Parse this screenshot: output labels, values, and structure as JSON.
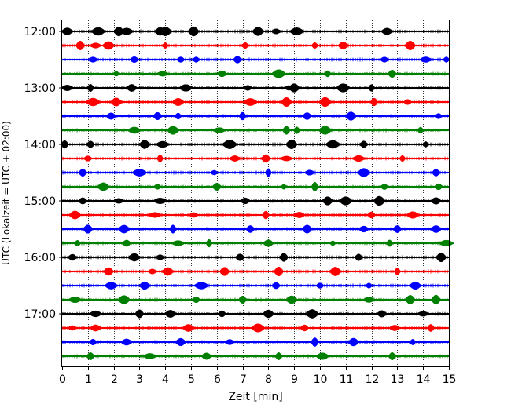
{
  "chart_data": {
    "type": "line",
    "title": "",
    "xlabel": "Zeit  [min]",
    "ylabel": "UTC (Lokalzeit = UTC + 02:00)",
    "xlim": [
      0,
      15
    ],
    "xticks": [
      "0",
      "1",
      "2",
      "3",
      "4",
      "5",
      "6",
      "7",
      "8",
      "9",
      "10",
      "11",
      "12",
      "13",
      "14",
      "15"
    ],
    "yticks": [
      {
        "label": "12:00",
        "trace_index": 0
      },
      {
        "label": "13:00",
        "trace_index": 4
      },
      {
        "label": "14:00",
        "trace_index": 8
      },
      {
        "label": "15:00",
        "trace_index": 12
      },
      {
        "label": "16:00",
        "trace_index": 16
      },
      {
        "label": "17:00",
        "trace_index": 20
      }
    ],
    "trace_interval_minutes": 15,
    "grid": "vertical dotted at each minute",
    "colors": [
      "#000000",
      "#ff0000",
      "#0000ff",
      "#008000"
    ],
    "traces": [
      {
        "start": "12:00",
        "color": "#000000",
        "events_min": [
          0.2,
          1.4,
          2.2,
          2.5,
          3.8,
          4.0,
          5.1,
          7.6,
          8.3,
          9.1,
          12.6
        ]
      },
      {
        "start": "12:15",
        "color": "#ff0000",
        "events_min": [
          0.7,
          1.3,
          1.8,
          4.0,
          7.1,
          9.8,
          10.9,
          13.5
        ]
      },
      {
        "start": "12:30",
        "color": "#0000ff",
        "events_min": [
          1.2,
          2.8,
          4.6,
          5.2,
          6.8,
          12.5,
          14.1,
          14.9
        ]
      },
      {
        "start": "12:45",
        "color": "#008000",
        "events_min": [
          2.1,
          3.9,
          6.2,
          8.4,
          10.3,
          12.8
        ]
      },
      {
        "start": "13:00",
        "color": "#000000",
        "events_min": [
          0.2,
          1.1,
          2.7,
          4.8,
          7.2,
          8.8,
          9.0,
          10.9,
          12.0
        ]
      },
      {
        "start": "13:15",
        "color": "#ff0000",
        "events_min": [
          1.2,
          2.1,
          4.5,
          7.3,
          8.7,
          10.2,
          12.1,
          13.4
        ]
      },
      {
        "start": "13:30",
        "color": "#0000ff",
        "events_min": [
          1.9,
          3.7,
          4.5,
          7.0,
          9.5,
          11.2,
          14.6
        ]
      },
      {
        "start": "13:45",
        "color": "#008000",
        "events_min": [
          2.8,
          4.3,
          6.1,
          8.7,
          9.1,
          10.2,
          13.9
        ]
      },
      {
        "start": "14:00",
        "color": "#000000",
        "events_min": [
          0.1,
          1.1,
          3.2,
          3.9,
          6.5,
          8.9,
          10.5,
          11.7,
          14.1
        ]
      },
      {
        "start": "14:15",
        "color": "#ff0000",
        "events_min": [
          1.0,
          3.8,
          6.7,
          7.9,
          8.7,
          11.5,
          13.2
        ]
      },
      {
        "start": "14:30",
        "color": "#0000ff",
        "events_min": [
          0.8,
          3.0,
          5.9,
          8.0,
          9.6,
          11.7,
          14.5
        ]
      },
      {
        "start": "14:45",
        "color": "#008000",
        "events_min": [
          1.6,
          3.7,
          6.0,
          8.6,
          9.8,
          12.5,
          14.6
        ]
      },
      {
        "start": "15:00",
        "color": "#000000",
        "events_min": [
          0.8,
          2.2,
          3.8,
          7.1,
          10.3,
          11.0,
          12.3,
          14.5
        ]
      },
      {
        "start": "15:15",
        "color": "#ff0000",
        "events_min": [
          0.5,
          3.6,
          5.1,
          7.9,
          9.2,
          12.0,
          13.6
        ]
      },
      {
        "start": "15:30",
        "color": "#0000ff",
        "events_min": [
          1.0,
          2.4,
          4.3,
          7.3,
          9.5,
          11.7,
          13.0,
          14.5
        ]
      },
      {
        "start": "15:45",
        "color": "#008000",
        "events_min": [
          0.6,
          2.5,
          4.5,
          5.7,
          8.0,
          10.5,
          12.7,
          14.9
        ]
      },
      {
        "start": "16:00",
        "color": "#000000",
        "events_min": [
          0.4,
          2.8,
          3.8,
          6.9,
          8.6,
          11.5,
          14.7
        ]
      },
      {
        "start": "16:15",
        "color": "#ff0000",
        "events_min": [
          1.8,
          3.5,
          4.1,
          6.3,
          8.4,
          10.6,
          13.0
        ]
      },
      {
        "start": "16:30",
        "color": "#0000ff",
        "events_min": [
          1.9,
          3.2,
          5.4,
          8.3,
          10.0,
          11.9,
          13.7
        ]
      },
      {
        "start": "16:45",
        "color": "#008000",
        "events_min": [
          0.5,
          2.4,
          5.2,
          7.0,
          8.9,
          11.9,
          13.5,
          14.5
        ]
      },
      {
        "start": "17:00",
        "color": "#000000",
        "events_min": [
          1.3,
          3.0,
          4.2,
          6.2,
          8.0,
          9.7,
          12.4,
          14.0
        ]
      },
      {
        "start": "17:15",
        "color": "#ff0000",
        "events_min": [
          0.4,
          1.3,
          4.9,
          7.6,
          9.4,
          12.9,
          14.3
        ]
      },
      {
        "start": "17:30",
        "color": "#0000ff",
        "events_min": [
          1.2,
          2.5,
          4.6,
          6.5,
          9.8,
          11.3,
          13.6
        ]
      },
      {
        "start": "17:45",
        "color": "#008000",
        "events_min": [
          1.1,
          3.4,
          5.6,
          8.4,
          10.1,
          12.8
        ]
      }
    ]
  }
}
